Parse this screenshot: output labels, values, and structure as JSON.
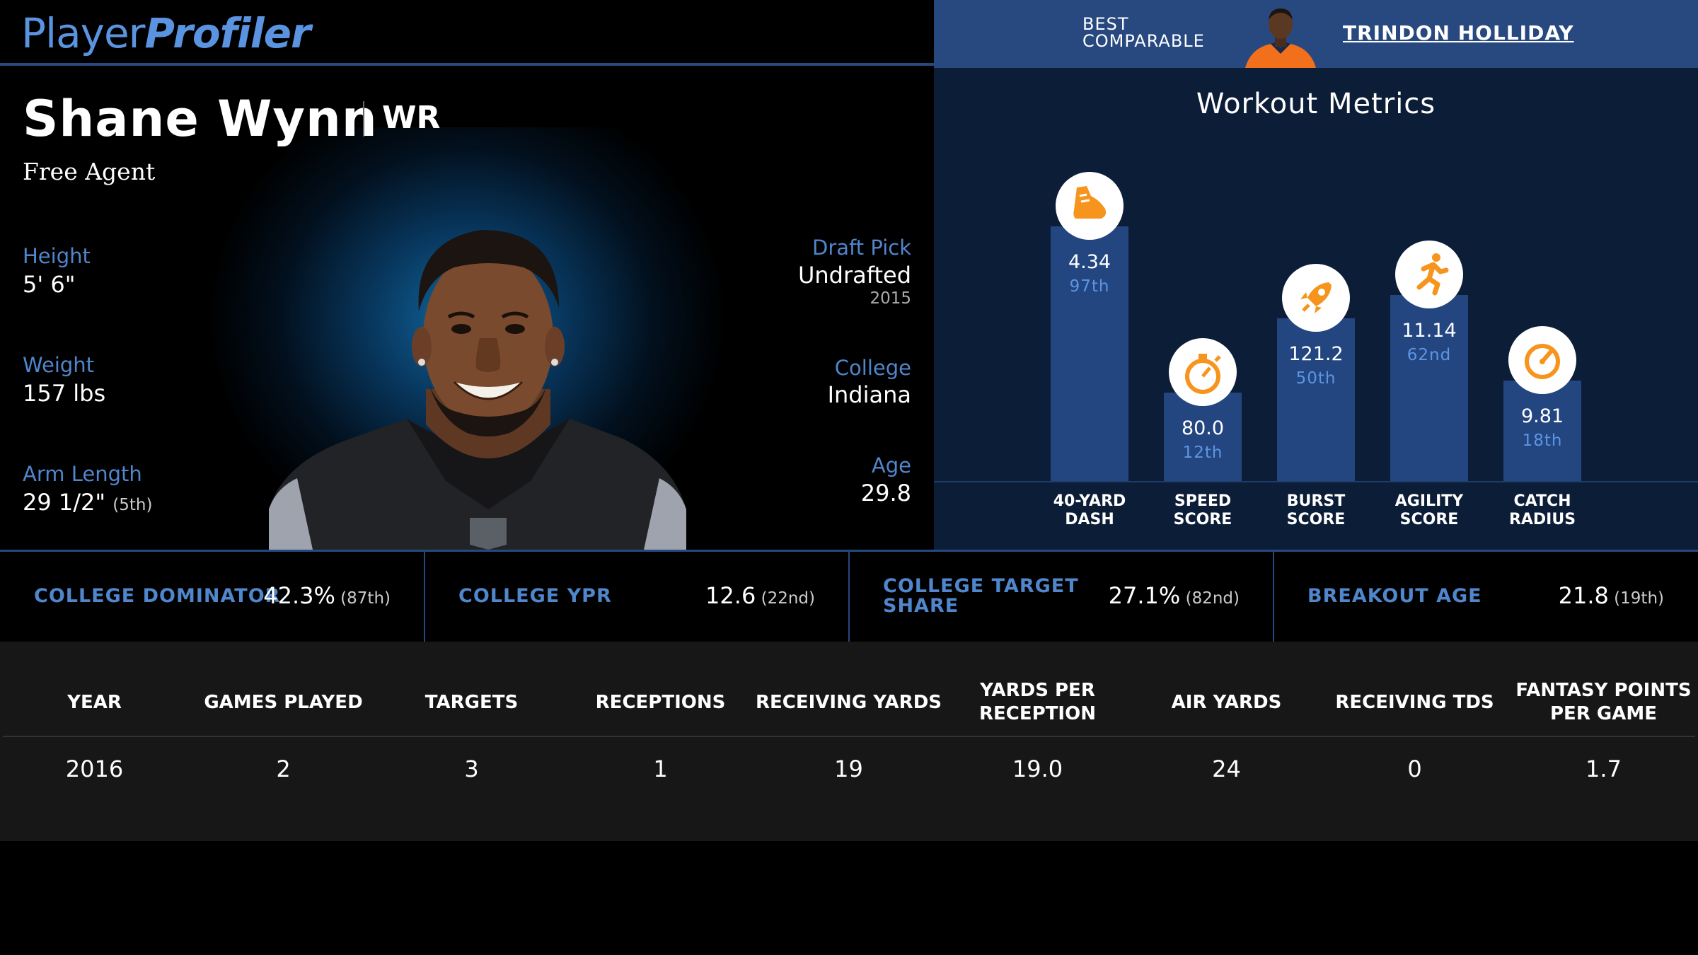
{
  "brand": {
    "part1": "Player",
    "part2": "Profiler"
  },
  "player": {
    "name": "Shane Wynn",
    "position": "WR",
    "team": "Free Agent",
    "height_label": "Height",
    "height": "5' 6\"",
    "weight_label": "Weight",
    "weight": "157 lbs",
    "arm_label": "Arm Length",
    "arm": "29 1/2\"",
    "arm_rank": "(5th)",
    "draft_label": "Draft Pick",
    "draft": "Undrafted",
    "draft_year": "2015",
    "college_label": "College",
    "college": "Indiana",
    "age_label": "Age",
    "age": "29.8"
  },
  "comparable": {
    "label_line1": "BEST",
    "label_line2": "COMPARABLE",
    "name": "TRINDON HOLLIDAY"
  },
  "workout": {
    "title": "Workout Metrics",
    "metrics": [
      {
        "label1": "40-YARD",
        "label2": "DASH",
        "value": "4.34",
        "percentile_label": "97th",
        "percentile": 97,
        "icon": "running-shoe-icon"
      },
      {
        "label1": "SPEED",
        "label2": "SCORE",
        "value": "80.0",
        "percentile_label": "12th",
        "percentile": 12,
        "icon": "stopwatch-icon"
      },
      {
        "label1": "BURST",
        "label2": "SCORE",
        "value": "121.2",
        "percentile_label": "50th",
        "percentile": 50,
        "icon": "rocket-icon"
      },
      {
        "label1": "AGILITY",
        "label2": "SCORE",
        "value": "11.14",
        "percentile_label": "62nd",
        "percentile": 62,
        "icon": "runner-icon"
      },
      {
        "label1": "CATCH",
        "label2": "RADIUS",
        "value": "9.81",
        "percentile_label": "18th",
        "percentile": 18,
        "icon": "gauge-icon"
      }
    ],
    "colors": {
      "bar": "#234681",
      "icon": "#f7941d",
      "percentile": "#5d95e2"
    }
  },
  "college_metrics": [
    {
      "label1": "COLLEGE DOMINATOR",
      "label2": "",
      "value": "42.3%",
      "rank": "(87th)"
    },
    {
      "label1": "COLLEGE YPR",
      "label2": "",
      "value": "12.6",
      "rank": "(22nd)"
    },
    {
      "label1": "COLLEGE TARGET",
      "label2": "SHARE",
      "value": "27.1%",
      "rank": "(82nd)"
    },
    {
      "label1": "BREAKOUT AGE",
      "label2": "",
      "value": "21.8",
      "rank": "(19th)"
    }
  ],
  "stats_table": {
    "headers": [
      "YEAR",
      "GAMES PLAYED",
      "TARGETS",
      "RECEPTIONS",
      "RECEIVING YARDS",
      "YARDS PER RECEPTION",
      "AIR YARDS",
      "RECEIVING TDS",
      "FANTASY POINTS PER GAME"
    ],
    "rows": [
      [
        "2016",
        "2",
        "3",
        "1",
        "19",
        "19.0",
        "24",
        "0",
        "1.7"
      ]
    ]
  }
}
